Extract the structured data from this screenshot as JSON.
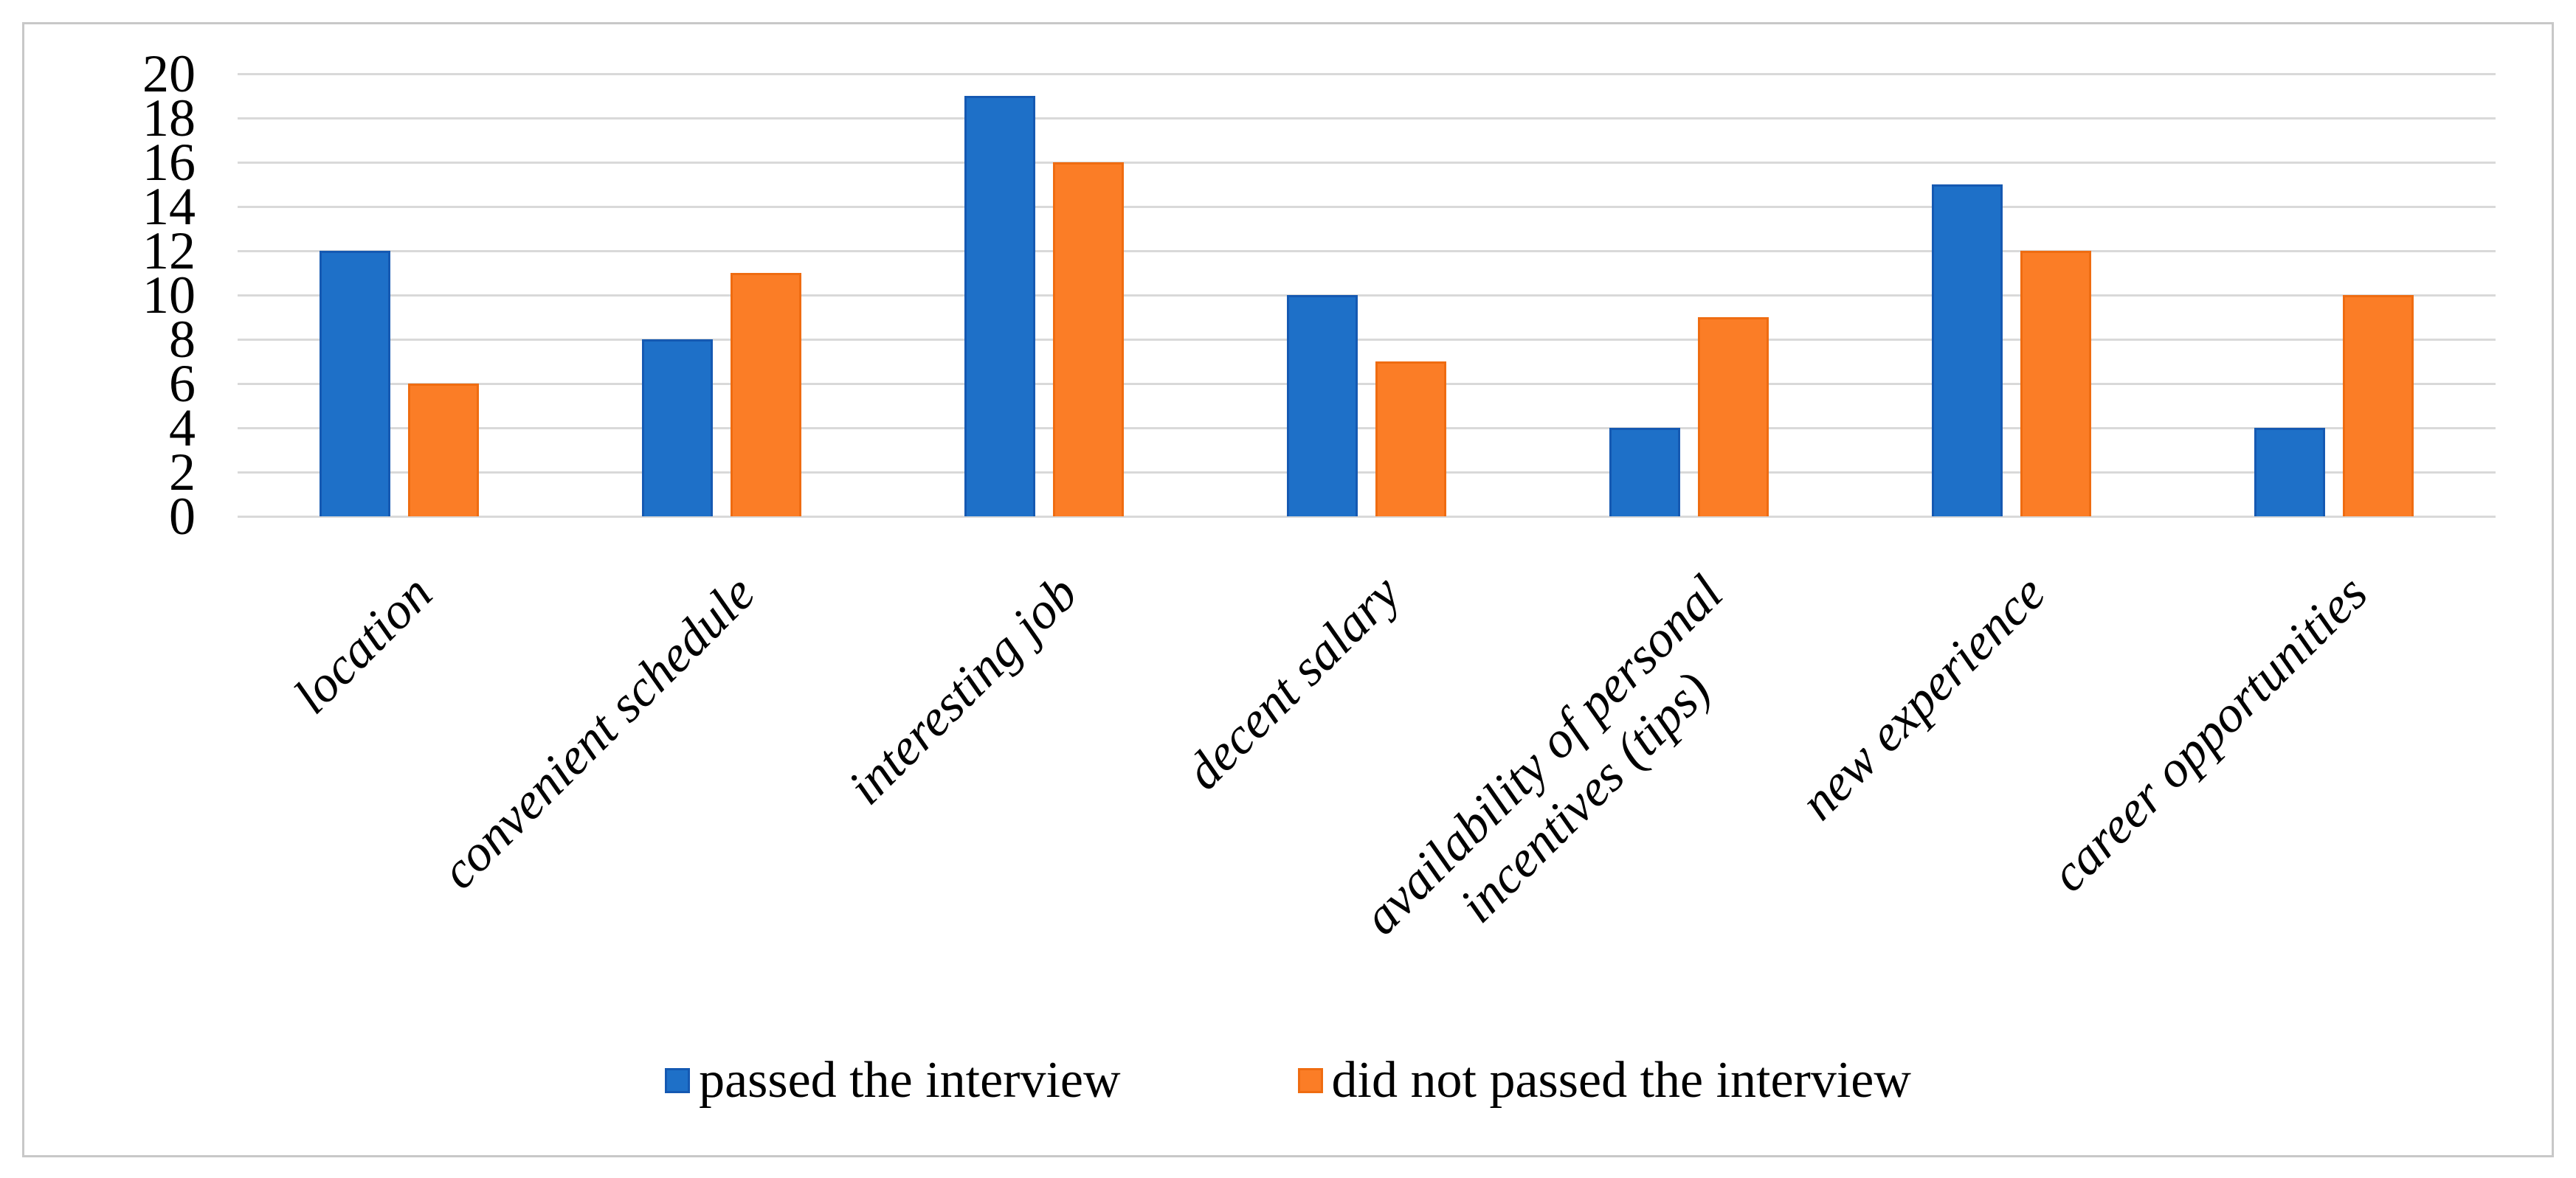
{
  "chart_data": {
    "type": "bar",
    "title": "",
    "xlabel": "",
    "ylabel": "",
    "categories": [
      "location",
      "convenient schedule",
      "interesting job",
      "decent salary",
      "availability of personal\nincentives (tips)",
      "new experience",
      "career opportunities"
    ],
    "series": [
      {
        "name": "passed the interview",
        "values": [
          12,
          8,
          19,
          10,
          4,
          15,
          4
        ],
        "fill_color": "#1e70c8",
        "border_color": "#1559b2"
      },
      {
        "name": "did not passed the interview",
        "values": [
          6,
          11,
          16,
          7,
          9,
          12,
          10
        ],
        "fill_color": "#fb7d26",
        "border_color": "#ef6c11"
      }
    ],
    "y_axis": {
      "min": 0,
      "max": 20,
      "step": 2,
      "ticks": [
        0,
        2,
        4,
        6,
        8,
        10,
        12,
        14,
        16,
        18,
        20
      ]
    },
    "grid": true,
    "gridline_color": "#d9d9d9",
    "figure_border_color": "#c8c8c8",
    "legend_position": "bottom",
    "legend": [
      {
        "label": "passed the interview",
        "color": "#1e70c8"
      },
      {
        "label": "did not passed the interview",
        "color": "#fb7d26"
      }
    ]
  }
}
